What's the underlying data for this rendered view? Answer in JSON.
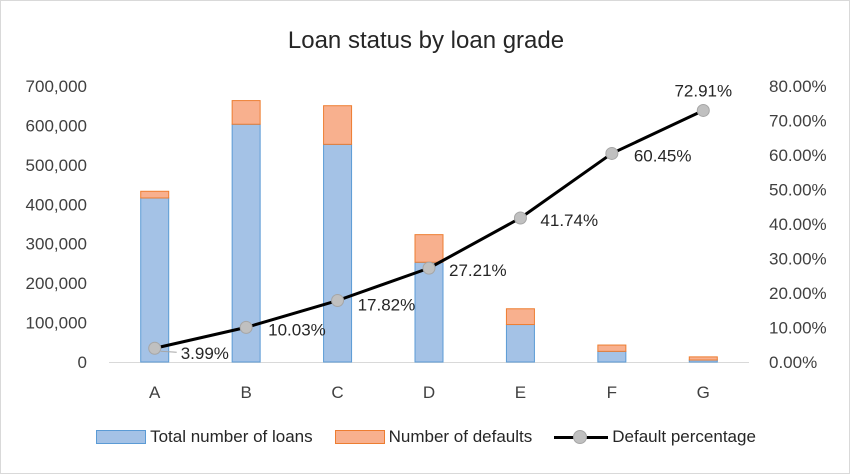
{
  "chart_data": {
    "type": "bar",
    "title": "Loan status by loan grade",
    "categories": [
      "A",
      "B",
      "C",
      "D",
      "E",
      "F",
      "G"
    ],
    "series": [
      {
        "name": "Total number of loans",
        "type": "bar",
        "stacked": true,
        "axis": "left",
        "values": [
          416000,
          603000,
          552000,
          253000,
          95000,
          27000,
          5000
        ]
      },
      {
        "name": "Number of defaults",
        "type": "bar",
        "stacked": true,
        "axis": "left",
        "values": [
          17000,
          60000,
          98000,
          70000,
          40000,
          16000,
          8000
        ]
      },
      {
        "name": "Default percentage",
        "type": "line",
        "axis": "right",
        "values": [
          3.99,
          10.03,
          17.82,
          27.21,
          41.74,
          60.45,
          72.91
        ],
        "labels": [
          "3.99%",
          "10.03%",
          "17.82%",
          "27.21%",
          "41.74%",
          "60.45%",
          "72.91%"
        ]
      }
    ],
    "left_axis": {
      "range": [
        0,
        700000
      ],
      "ticks": [
        "0",
        "100,000",
        "200,000",
        "300,000",
        "400,000",
        "500,000",
        "600,000",
        "700,000"
      ]
    },
    "right_axis": {
      "range": [
        0,
        80
      ],
      "ticks": [
        "0.00%",
        "10.00%",
        "20.00%",
        "30.00%",
        "40.00%",
        "50.00%",
        "60.00%",
        "70.00%",
        "80.00%"
      ]
    },
    "grid": false,
    "legend": "bottom",
    "colors": {
      "loans_fill": "#a4c2e6",
      "loans_border": "#5b9bd5",
      "defaults_fill": "#f8b08e",
      "defaults_border": "#ed7d31",
      "line": "#000000",
      "marker": "#c0c0c0"
    }
  }
}
